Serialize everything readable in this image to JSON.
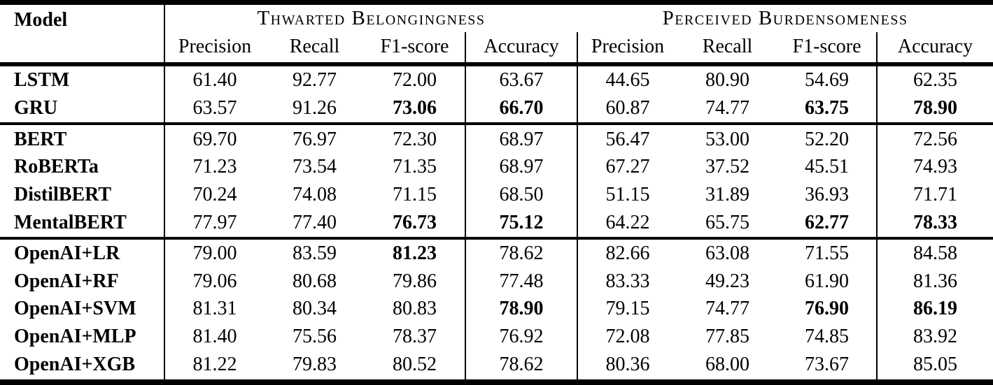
{
  "table": {
    "model_header": "Model",
    "groups": [
      {
        "title": "Thwarted Belongingness"
      },
      {
        "title": "Perceived Burdensomeness"
      }
    ],
    "sub_headers": [
      "Precision",
      "Recall",
      "F1-score",
      "Accuracy",
      "Precision",
      "Recall",
      "F1-score",
      "Accuracy"
    ],
    "column_keys": [
      "tb-precision",
      "tb-recall",
      "tb-f1",
      "tb-accuracy",
      "pb-precision",
      "pb-recall",
      "pb-f1",
      "pb-accuracy"
    ],
    "sections": [
      {
        "rows": [
          {
            "model": "LSTM",
            "values": [
              "61.40",
              "92.77",
              "72.00",
              "63.67",
              "44.65",
              "80.90",
              "54.69",
              "62.35"
            ],
            "bold": []
          },
          {
            "model": "GRU",
            "values": [
              "63.57",
              "91.26",
              "73.06",
              "66.70",
              "60.87",
              "74.77",
              "63.75",
              "78.90"
            ],
            "bold": [
              2,
              3,
              6,
              7
            ]
          }
        ]
      },
      {
        "rows": [
          {
            "model": "BERT",
            "values": [
              "69.70",
              "76.97",
              "72.30",
              "68.97",
              "56.47",
              "53.00",
              "52.20",
              "72.56"
            ],
            "bold": []
          },
          {
            "model": "RoBERTa",
            "values": [
              "71.23",
              "73.54",
              "71.35",
              "68.97",
              "67.27",
              "37.52",
              "45.51",
              "74.93"
            ],
            "bold": []
          },
          {
            "model": "DistilBERT",
            "values": [
              "70.24",
              "74.08",
              "71.15",
              "68.50",
              "51.15",
              "31.89",
              "36.93",
              "71.71"
            ],
            "bold": []
          },
          {
            "model": "MentalBERT",
            "values": [
              "77.97",
              "77.40",
              "76.73",
              "75.12",
              "64.22",
              "65.75",
              "62.77",
              "78.33"
            ],
            "bold": [
              2,
              3,
              6,
              7
            ]
          }
        ]
      },
      {
        "rows": [
          {
            "model": "OpenAI+LR",
            "values": [
              "79.00",
              "83.59",
              "81.23",
              "78.62",
              "82.66",
              "63.08",
              "71.55",
              "84.58"
            ],
            "bold": [
              2
            ]
          },
          {
            "model": "OpenAI+RF",
            "values": [
              "79.06",
              "80.68",
              "79.86",
              "77.48",
              "83.33",
              "49.23",
              "61.90",
              "81.36"
            ],
            "bold": []
          },
          {
            "model": "OpenAI+SVM",
            "values": [
              "81.31",
              "80.34",
              "80.83",
              "78.90",
              "79.15",
              "74.77",
              "76.90",
              "86.19"
            ],
            "bold": [
              3,
              6,
              7
            ]
          },
          {
            "model": "OpenAI+MLP",
            "values": [
              "81.40",
              "75.56",
              "78.37",
              "76.92",
              "72.08",
              "77.85",
              "74.85",
              "83.92"
            ],
            "bold": []
          },
          {
            "model": "OpenAI+XGB",
            "values": [
              "81.22",
              "79.83",
              "80.52",
              "78.62",
              "80.36",
              "68.00",
              "73.67",
              "85.05"
            ],
            "bold": []
          }
        ]
      }
    ]
  }
}
